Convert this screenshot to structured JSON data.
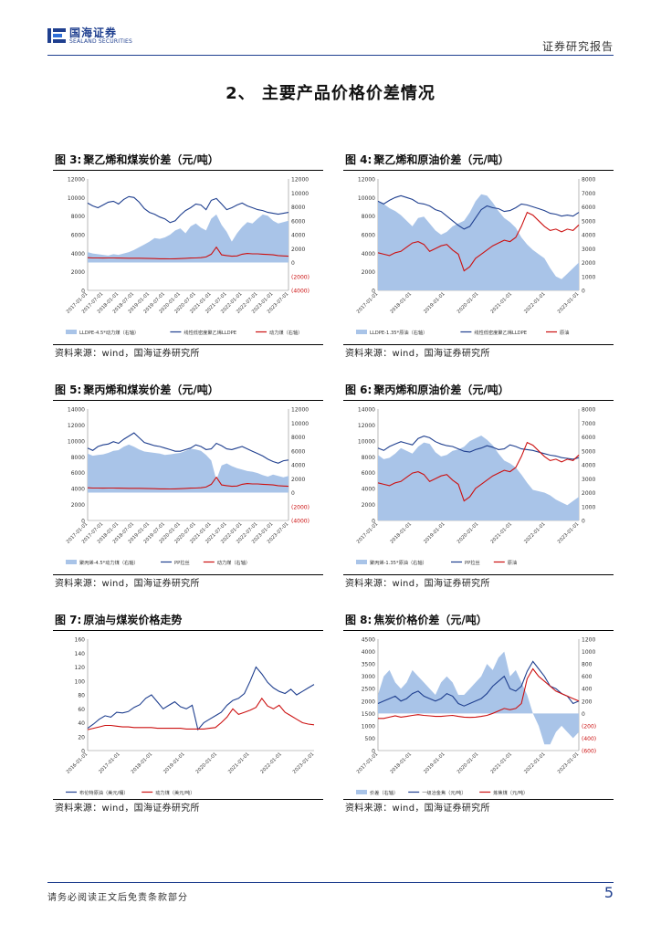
{
  "header": {
    "logo_cn": "国海证券",
    "logo_en": "SEALAND SECURITIES",
    "report_type": "证券研究报告"
  },
  "section": {
    "title": "2、 主要产品价格价差情况"
  },
  "colors": {
    "blue_line": "#1f3f8f",
    "red_line": "#cc1111",
    "area_fill": "#a9c4e8",
    "brand": "#1f3f8f"
  },
  "figures": [
    {
      "num": "图 3:",
      "title": "聚乙烯和煤炭价差（元/吨）",
      "source": "资料来源：wind，国海证券研究所"
    },
    {
      "num": "图 4:",
      "title": "聚乙烯和原油价差（元/吨）",
      "source": "资料来源：wind，国海证券研究所"
    },
    {
      "num": "图 5:",
      "title": "聚丙烯和煤炭价差（元/吨）",
      "source": "资料来源：wind，国海证券研究所"
    },
    {
      "num": "图 6:",
      "title": "聚丙烯和原油价差（元/吨）",
      "source": "资料来源：wind，国海证券研究所"
    },
    {
      "num": "图 7:",
      "title": "原油与煤炭价格走势",
      "source": "资料来源：wind，国海证券研究所"
    },
    {
      "num": "图 8:",
      "title": "焦炭价格价差（元/吨）",
      "source": "资料来源：wind，国海证券研究所"
    }
  ],
  "chart_data": [
    {
      "id": "fig3",
      "type": "line",
      "left_ticks": [
        "12000",
        "10000",
        "8000",
        "6000",
        "4000",
        "2000",
        "0"
      ],
      "left_range": [
        0,
        12000
      ],
      "right_ticks": [
        "12000",
        "10000",
        "8000",
        "6000",
        "4000",
        "2000",
        "0",
        "(2000)",
        "(4000)"
      ],
      "right_range": [
        -4000,
        12000
      ],
      "x_labels": [
        "2017-01-01",
        "2017-07-01",
        "2018-01-01",
        "2018-07-01",
        "2019-01-01",
        "2019-07-01",
        "2020-01-01",
        "2020-07-01",
        "2021-01-01",
        "2021-07-01",
        "2022-01-01",
        "2022-07-01",
        "2023-01-01",
        "2023-07-01"
      ],
      "series": [
        {
          "name": "LLDPE-4.5*动力煤（右轴）",
          "kind": "area",
          "axis": "right",
          "values": [
            1500,
            1300,
            1200,
            1100,
            1000,
            1200,
            1100,
            1300,
            1500,
            1800,
            2200,
            2600,
            3000,
            3500,
            3400,
            3600,
            4000,
            4600,
            4900,
            4200,
            5200,
            5600,
            5000,
            4600,
            6300,
            6900,
            5400,
            4400,
            3000,
            4200,
            5100,
            5800,
            5600,
            6300,
            6900,
            6700,
            6000,
            5600,
            5800,
            6000
          ]
        },
        {
          "name": "线性低密度聚乙烯LLDPE",
          "kind": "line",
          "axis": "left",
          "values": [
            9400,
            9100,
            8900,
            9200,
            9500,
            9600,
            9300,
            9800,
            10100,
            10000,
            9500,
            8800,
            8400,
            8200,
            7900,
            7700,
            7300,
            7500,
            8100,
            8600,
            8900,
            9300,
            9200,
            8700,
            9700,
            9900,
            9300,
            8700,
            8900,
            9200,
            9400,
            9100,
            8900,
            8700,
            8600,
            8400,
            8300,
            8200,
            8300,
            8400
          ]
        },
        {
          "name": "动力煤（右轴）",
          "kind": "line",
          "axis": "right",
          "values": [
            700,
            650,
            650,
            640,
            650,
            650,
            640,
            630,
            620,
            610,
            610,
            600,
            580,
            560,
            540,
            540,
            530,
            540,
            560,
            600,
            640,
            660,
            700,
            800,
            1200,
            2200,
            1100,
            1000,
            900,
            950,
            1200,
            1300,
            1250,
            1250,
            1200,
            1150,
            1100,
            1000,
            950,
            900
          ]
        }
      ]
    },
    {
      "id": "fig4",
      "type": "line",
      "left_ticks": [
        "12000",
        "10000",
        "8000",
        "6000",
        "4000",
        "2000",
        "0"
      ],
      "left_range": [
        0,
        12000
      ],
      "right_ticks": [
        "8000",
        "7000",
        "6000",
        "5000",
        "4000",
        "3000",
        "2000",
        "1000",
        "0"
      ],
      "right_range": [
        0,
        8000
      ],
      "x_labels": [
        "2017-01-01",
        "2018-01-01",
        "2019-01-01",
        "2020-01-01",
        "2021-01-01",
        "2022-01-01",
        "2023-01-01"
      ],
      "series": [
        {
          "name": "LLDPE-1.35*原油（右轴）",
          "kind": "area",
          "axis": "right",
          "values": [
            6400,
            6200,
            5900,
            5700,
            5400,
            5000,
            4600,
            5200,
            5300,
            4800,
            4300,
            4000,
            4200,
            4600,
            4800,
            5000,
            5600,
            6400,
            6900,
            6800,
            6300,
            5700,
            5200,
            4900,
            4500,
            3800,
            3300,
            2900,
            2600,
            2300,
            1600,
            1000,
            800,
            1200,
            1600,
            2000
          ]
        },
        {
          "name": "线性低密度聚乙烯LLDPE",
          "kind": "line",
          "axis": "left",
          "values": [
            9600,
            9300,
            9700,
            10000,
            10200,
            10000,
            9800,
            9400,
            9300,
            9100,
            8700,
            8500,
            8000,
            7500,
            7000,
            6600,
            6900,
            7800,
            8700,
            9100,
            8900,
            8800,
            8500,
            8600,
            8900,
            9300,
            9200,
            9000,
            8800,
            8600,
            8300,
            8200,
            8000,
            8100,
            8000,
            8400
          ]
        },
        {
          "name": "原油",
          "kind": "line",
          "axis": "right",
          "values": [
            2700,
            2600,
            2500,
            2700,
            2800,
            3100,
            3400,
            3500,
            3300,
            2800,
            3000,
            3200,
            3300,
            2900,
            2600,
            1400,
            1700,
            2300,
            2600,
            2900,
            3200,
            3400,
            3600,
            3500,
            3800,
            4600,
            5600,
            5400,
            5000,
            4600,
            4300,
            4400,
            4200,
            4400,
            4300,
            4700
          ]
        }
      ]
    },
    {
      "id": "fig5",
      "type": "line",
      "left_ticks": [
        "14000",
        "12000",
        "10000",
        "8000",
        "6000",
        "4000",
        "2000",
        "0"
      ],
      "left_range": [
        0,
        14000
      ],
      "right_ticks": [
        "12000",
        "10000",
        "8000",
        "6000",
        "4000",
        "2000",
        "0",
        "(2000)",
        "(4000)"
      ],
      "right_range": [
        -4000,
        12000
      ],
      "x_labels": [
        "2017-01-01",
        "2017-07-01",
        "2018-01-01",
        "2018-07-01",
        "2019-01-01",
        "2019-07-01",
        "2020-01-01",
        "2020-07-01",
        "2021-01-01",
        "2021-07-01",
        "2022-01-01",
        "2022-07-01",
        "2023-01-01",
        "2023-07-01"
      ],
      "series": [
        {
          "name": "聚丙烯-4.5*动力煤（右轴）",
          "kind": "area",
          "axis": "right",
          "values": [
            5600,
            5300,
            5400,
            5500,
            5700,
            6000,
            6100,
            6600,
            6900,
            6600,
            6200,
            5900,
            5800,
            5700,
            5600,
            5400,
            5500,
            5600,
            5700,
            6000,
            6300,
            6200,
            6000,
            5400,
            4600,
            1800,
            3900,
            4200,
            3800,
            3500,
            3300,
            3100,
            3000,
            2800,
            2500,
            2300,
            2600,
            2400,
            2200,
            2400
          ]
        },
        {
          "name": "PP拉丝",
          "kind": "line",
          "axis": "left",
          "values": [
            9100,
            8800,
            9300,
            9500,
            9600,
            9900,
            9700,
            10200,
            10600,
            11000,
            10400,
            9800,
            9600,
            9400,
            9300,
            9100,
            8900,
            8700,
            8700,
            8900,
            9100,
            9500,
            9300,
            8900,
            9000,
            9700,
            9400,
            9000,
            8900,
            9100,
            9300,
            9000,
            8700,
            8400,
            8100,
            7700,
            7400,
            7200,
            7500,
            7600
          ]
        },
        {
          "name": "动力煤（右轴）",
          "kind": "line",
          "axis": "right",
          "values": [
            700,
            650,
            650,
            640,
            650,
            650,
            640,
            630,
            620,
            610,
            610,
            600,
            580,
            560,
            540,
            540,
            530,
            540,
            560,
            600,
            640,
            660,
            700,
            800,
            1200,
            2200,
            1100,
            1000,
            900,
            950,
            1200,
            1300,
            1250,
            1250,
            1200,
            1150,
            1100,
            1000,
            950,
            900
          ]
        }
      ]
    },
    {
      "id": "fig6",
      "type": "line",
      "left_ticks": [
        "14000",
        "12000",
        "10000",
        "8000",
        "6000",
        "4000",
        "2000",
        "0"
      ],
      "left_range": [
        0,
        14000
      ],
      "right_ticks": [
        "8000",
        "7000",
        "6000",
        "5000",
        "4000",
        "3000",
        "2000",
        "1000",
        "0"
      ],
      "right_range": [
        0,
        8000
      ],
      "x_labels": [
        "2017-01-01",
        "2018-01-01",
        "2019-01-01",
        "2020-01-01",
        "2021-01-01",
        "2022-01-01",
        "2023-01-01"
      ],
      "series": [
        {
          "name": "聚丙烯-1.35*原油（右轴）",
          "kind": "area",
          "axis": "right",
          "values": [
            4700,
            4400,
            4500,
            4800,
            5200,
            5000,
            4800,
            5300,
            5600,
            5500,
            4900,
            4600,
            4700,
            5000,
            5100,
            5300,
            5700,
            5900,
            6100,
            5800,
            5400,
            4800,
            4300,
            4100,
            3800,
            3300,
            2700,
            2200,
            2100,
            2000,
            1800,
            1500,
            1300,
            1100,
            1400,
            1700
          ]
        },
        {
          "name": "PP拉丝",
          "kind": "line",
          "axis": "left",
          "values": [
            9100,
            8800,
            9300,
            9600,
            9900,
            9700,
            9500,
            10300,
            10600,
            10400,
            9900,
            9600,
            9400,
            9300,
            9000,
            8700,
            8600,
            8900,
            9100,
            9400,
            9200,
            8900,
            9000,
            9500,
            9300,
            9000,
            8900,
            8800,
            8600,
            8400,
            8200,
            8100,
            7900,
            7800,
            7700,
            7900
          ]
        },
        {
          "name": "原油",
          "kind": "line",
          "axis": "right",
          "values": [
            2700,
            2600,
            2500,
            2700,
            2800,
            3100,
            3400,
            3500,
            3300,
            2800,
            3000,
            3200,
            3300,
            2900,
            2600,
            1400,
            1700,
            2300,
            2600,
            2900,
            3200,
            3400,
            3600,
            3500,
            3800,
            4600,
            5600,
            5400,
            5000,
            4600,
            4300,
            4400,
            4200,
            4400,
            4300,
            4700
          ]
        }
      ]
    },
    {
      "id": "fig7",
      "type": "line",
      "left_ticks": [
        "160",
        "140",
        "120",
        "100",
        "80",
        "60",
        "40",
        "20",
        "0"
      ],
      "left_range": [
        0,
        160
      ],
      "x_labels": [
        "2016-01-01",
        "2017-01-01",
        "2018-01-01",
        "2019-01-01",
        "2020-01-01",
        "2021-01-01",
        "2022-01-01",
        "2023-01-01"
      ],
      "series": [
        {
          "name": "布伦特原油（美元/桶）",
          "kind": "line",
          "axis": "left",
          "values": [
            32,
            38,
            45,
            50,
            48,
            55,
            54,
            56,
            62,
            66,
            75,
            80,
            70,
            60,
            65,
            70,
            63,
            60,
            65,
            30,
            40,
            45,
            50,
            55,
            65,
            72,
            75,
            82,
            100,
            120,
            110,
            98,
            90,
            85,
            82,
            88,
            80,
            85,
            90,
            95
          ]
        },
        {
          "name": "动力煤（美元/吨）",
          "kind": "line",
          "axis": "left",
          "values": [
            30,
            32,
            34,
            36,
            36,
            35,
            34,
            34,
            33,
            33,
            33,
            33,
            32,
            32,
            32,
            32,
            32,
            31,
            31,
            31,
            31,
            32,
            33,
            40,
            48,
            60,
            52,
            55,
            58,
            62,
            75,
            64,
            60,
            65,
            55,
            50,
            45,
            40,
            38,
            37
          ]
        }
      ]
    },
    {
      "id": "fig8",
      "type": "line",
      "left_ticks": [
        "4500",
        "4000",
        "3500",
        "3000",
        "2500",
        "2000",
        "1500",
        "1000",
        "500",
        "0"
      ],
      "left_range": [
        0,
        4500
      ],
      "right_ticks": [
        "1200",
        "1000",
        "800",
        "600",
        "400",
        "200",
        "0",
        "(200)",
        "(400)",
        "(600)"
      ],
      "right_range": [
        -600,
        1200
      ],
      "x_labels": [
        "2017-01-01",
        "2018-01-01",
        "2019-01-01",
        "2020-01-01",
        "2021-01-01",
        "2022-01-01",
        "2023-01-01"
      ],
      "series": [
        {
          "name": "价差（右轴）",
          "kind": "area",
          "axis": "right",
          "values": [
            300,
            600,
            700,
            500,
            400,
            500,
            700,
            600,
            500,
            400,
            300,
            500,
            600,
            500,
            300,
            300,
            400,
            500,
            600,
            800,
            700,
            900,
            1000,
            600,
            700,
            500,
            300,
            0,
            -200,
            -500,
            -500,
            -300,
            -200,
            -300,
            -400,
            -300
          ]
        },
        {
          "name": "一级冶金焦（元/吨）",
          "kind": "line",
          "axis": "left",
          "values": [
            1900,
            2000,
            2100,
            2200,
            2000,
            2100,
            2300,
            2400,
            2200,
            2100,
            2000,
            2100,
            2300,
            2200,
            1900,
            1800,
            1900,
            2000,
            2100,
            2300,
            2600,
            2800,
            3000,
            2500,
            2400,
            2600,
            3200,
            3600,
            3300,
            3000,
            2600,
            2500,
            2300,
            2200,
            1900,
            2000
          ]
        },
        {
          "name": "炼焦煤（元/吨）",
          "kind": "line",
          "axis": "left",
          "values": [
            1300,
            1300,
            1350,
            1400,
            1350,
            1380,
            1420,
            1450,
            1420,
            1400,
            1380,
            1380,
            1400,
            1420,
            1380,
            1350,
            1340,
            1350,
            1380,
            1420,
            1500,
            1600,
            1700,
            1650,
            1700,
            1900,
            2900,
            3300,
            3000,
            2800,
            2600,
            2400,
            2300,
            2200,
            2100,
            2000
          ]
        }
      ]
    }
  ],
  "footer": {
    "disclaimer": "请务必阅读正文后免责条款部分",
    "page": "5"
  }
}
